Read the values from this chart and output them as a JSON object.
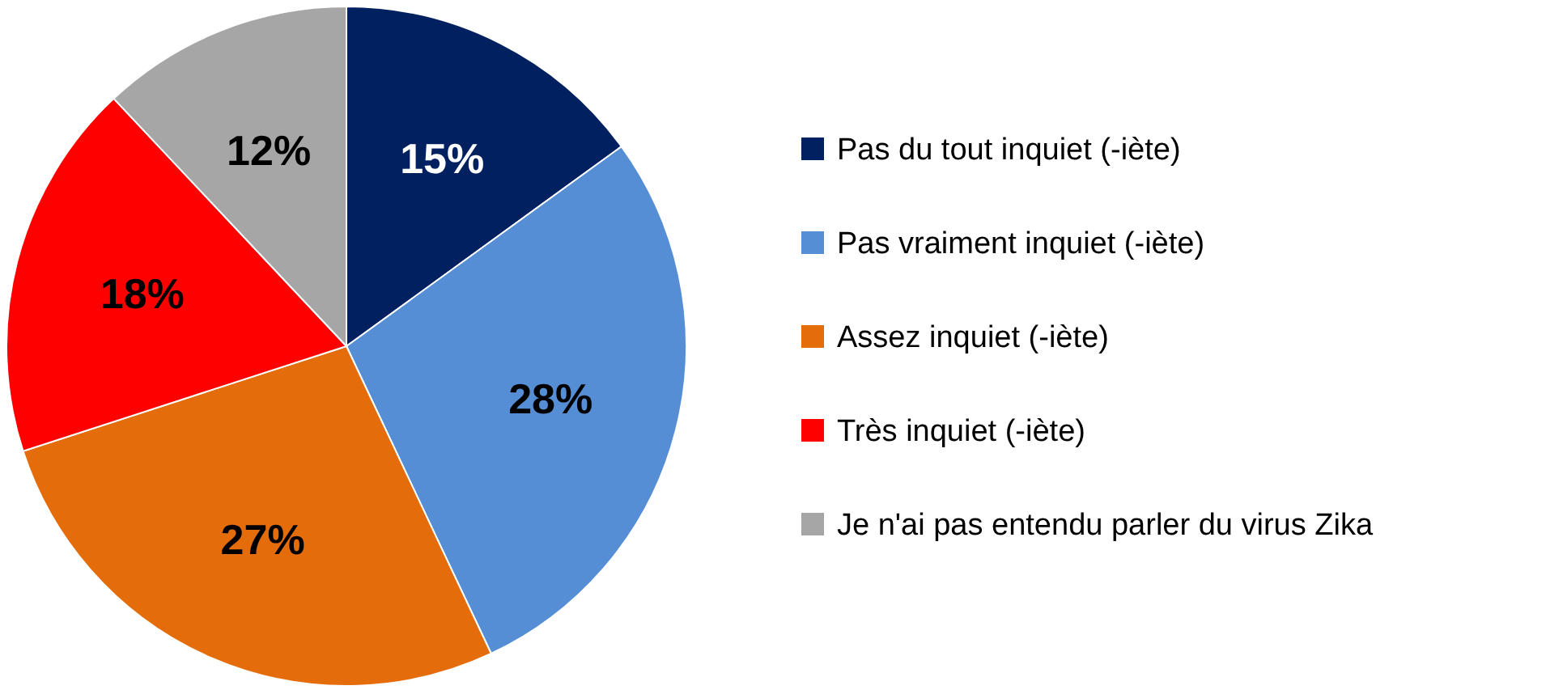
{
  "chart_data": {
    "type": "pie",
    "categories": [
      "Pas du tout inquiet (-iète)",
      "Pas vraiment inquiet (-iète)",
      "Assez inquiet (-iète)",
      "Très inquiet (-iète)",
      "Je n'ai pas entendu parler du virus Zika"
    ],
    "values": [
      15,
      28,
      27,
      18,
      12
    ],
    "colors": [
      "#002060",
      "#558ed5",
      "#e46c0a",
      "#ff0000",
      "#a6a6a6"
    ],
    "value_labels": [
      "15%",
      "28%",
      "27%",
      "18%",
      "12%"
    ],
    "legend": "right"
  }
}
